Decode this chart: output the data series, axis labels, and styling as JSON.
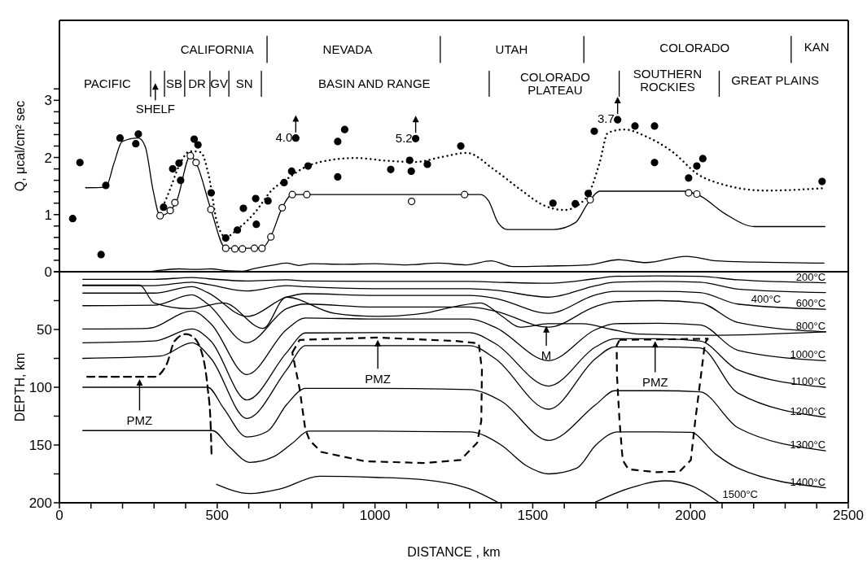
{
  "chart_data": [
    {
      "type": "line",
      "ylabel": "Q, μcal/cm² sec",
      "xlim": [
        0,
        2500
      ],
      "ylim": [
        0,
        4.4
      ],
      "tick_labels": "y",
      "yticks": [
        0,
        {
          "value": 0.2,
          "label": null
        },
        {
          "value": 0.4,
          "label": null
        },
        {
          "value": 0.6,
          "label": null
        },
        {
          "value": 0.8,
          "label": null
        },
        1,
        {
          "value": 1.2,
          "label": null
        },
        {
          "value": 1.4,
          "label": null
        },
        {
          "value": 1.6,
          "label": null
        },
        {
          "value": 1.8,
          "label": null
        },
        2,
        {
          "value": 2.2,
          "label": null
        },
        {
          "value": 2.4,
          "label": null
        },
        {
          "value": 2.6,
          "label": null
        },
        {
          "value": 2.8,
          "label": null
        },
        3,
        {
          "value": 3.2,
          "label": null
        }
      ],
      "annotations": [
        "SHELF",
        "CALIFORNIA",
        "NEVADA",
        "UTAH",
        "COLORADO",
        "KAN",
        "PACIFIC",
        "SB",
        "DR",
        "GV",
        "SN",
        "BASIN AND RANGE",
        "COLORADO\nPLATEAU",
        "SOUTHERN\nROCKIES",
        "GREAT PLAINS",
        "4.0",
        "5.2",
        "3.7"
      ],
      "series": [
        {
          "type": "line",
          "color": "#000000",
          "line_style": "solid",
          "x": [
            658,
            658,
            null,
            1207,
            1207,
            null,
            1662,
            1662,
            null,
            2319,
            2319
          ],
          "values": [
            3.66,
            4.12,
            null,
            3.66,
            4.12,
            null,
            3.66,
            4.12,
            null,
            3.66,
            4.12
          ]
        },
        {
          "type": "line",
          "color": "#000000",
          "line_style": "solid",
          "x": [
            289,
            289,
            null,
            333,
            333,
            null,
            397,
            397,
            null,
            477,
            477,
            null,
            537,
            537,
            null,
            640,
            640,
            null,
            1362,
            1362,
            null,
            1774,
            1774,
            null,
            2091,
            2091
          ],
          "values": [
            3.07,
            3.51,
            null,
            3.07,
            3.51,
            null,
            3.07,
            3.51,
            null,
            3.07,
            3.51,
            null,
            3.07,
            3.51,
            null,
            3.07,
            3.51,
            null,
            3.07,
            3.51,
            null,
            3.07,
            3.51,
            null,
            3.07,
            3.51
          ]
        },
        {
          "type": "line",
          "color": "#000000",
          "line_style": "solid",
          "x": [
            282,
            330,
            380,
            430,
            480,
            530,
            580,
            620,
            680,
            720,
            760,
            800,
            900,
            1000,
            1100,
            1200,
            1290,
            1368,
            1437,
            1550,
            1678,
            1772,
            1858,
            1987,
            2082,
            2200,
            2423
          ],
          "values": [
            0,
            0.03,
            0.05,
            0.04,
            0.05,
            0.02,
            0.01,
            0.06,
            0.12,
            0.15,
            0.11,
            0.14,
            0.13,
            0.14,
            0.12,
            0.15,
            0.12,
            0.19,
            0.09,
            0.1,
            0.12,
            0.21,
            0.16,
            0.27,
            0.19,
            0.17,
            0.15
          ]
        },
        {
          "type": "line",
          "color": "#000000",
          "line_style": "solid",
          "x": [
            83,
            147,
            173,
            199,
            250,
            272,
            297,
            319,
            351,
            371,
            415,
            435,
            480,
            527,
            642,
            670,
            706,
            738,
            1334,
            1360,
            1390,
            1420,
            1566,
            1635,
            1674,
            1712,
            1979,
            2030,
            2108,
            2203,
            2426
          ],
          "values": [
            1.47,
            1.48,
            1.9,
            2.28,
            2.34,
            2.19,
            1.42,
            0.98,
            1.07,
            1.23,
            2.03,
            1.88,
            1.09,
            0.41,
            0.41,
            0.62,
            1.12,
            1.35,
            1.35,
            1.24,
            0.86,
            0.74,
            0.74,
            0.86,
            1.19,
            1.41,
            1.41,
            1.33,
            1.02,
            0.79,
            0.79
          ]
        },
        {
          "type": "line",
          "color": "#000000",
          "line_style": "dotted",
          "x": [
            328,
            349,
            379,
            414,
            448,
            474,
            500,
            527,
            568,
            620,
            672,
            723,
            775,
            826,
            938,
            1042,
            1127,
            1213,
            1291,
            1377,
            1463,
            1532,
            1600,
            1669,
            1712,
            1738,
            1790,
            1858,
            1945,
            2022,
            2108,
            2237,
            2417
          ],
          "values": [
            1.14,
            1.42,
            1.85,
            2.11,
            2.09,
            1.66,
            0.85,
            0.61,
            0.76,
            1.04,
            1.42,
            1.63,
            1.82,
            1.92,
            1.99,
            1.94,
            1.92,
            2.01,
            2.08,
            1.79,
            1.43,
            1.17,
            1.08,
            1.29,
            1.91,
            2.43,
            2.49,
            2.37,
            2.09,
            1.71,
            1.52,
            1.42,
            1.46
          ]
        },
        {
          "type": "scatter",
          "color": "#ffffff",
          "marker": "circle",
          "x": [
            319,
            351,
            366,
            415,
            433,
            480,
            527,
            556,
            580,
            618,
            642,
            670,
            706,
            738,
            784,
            1116,
            1284,
            1682,
            1994,
            2020
          ],
          "values": [
            0.98,
            1.07,
            1.21,
            2.03,
            1.91,
            1.09,
            0.41,
            0.4,
            0.4,
            0.41,
            0.41,
            0.61,
            1.12,
            1.35,
            1.35,
            1.23,
            1.35,
            1.26,
            1.38,
            1.36
          ]
        },
        {
          "type": "scatter",
          "color": "#000000",
          "marker": "circle",
          "x": [
            65,
            42,
            132,
            147,
            192,
            242,
            250,
            330,
            359,
            379,
            384,
            427,
            439,
            481,
            527,
            564,
            583,
            622,
            624,
            661,
            712,
            736,
            749,
            788,
            882,
            904,
            882,
            1050,
            1110,
            1115,
            1129,
            1166,
            1272,
            1564,
            1635,
            1676,
            1695,
            1769,
            1824,
            1886,
            1886,
            1994,
            2020,
            2039,
            2417
          ],
          "values": [
            1.91,
            0.93,
            0.3,
            1.51,
            2.34,
            2.24,
            2.41,
            1.13,
            1.8,
            1.9,
            1.6,
            2.32,
            2.22,
            1.38,
            0.59,
            0.73,
            1.11,
            1.28,
            0.83,
            1.24,
            1.56,
            1.76,
            2.34,
            1.85,
            2.28,
            2.49,
            1.66,
            1.79,
            1.95,
            1.76,
            2.33,
            1.88,
            2.2,
            1.2,
            1.19,
            1.37,
            2.46,
            2.66,
            2.55,
            2.55,
            1.91,
            1.64,
            1.85,
            1.98,
            1.58
          ]
        }
      ]
    },
    {
      "type": "line",
      "xlabel": "DISTANCE , km",
      "ylabel": "DEPTH, km",
      "xlim": [
        0,
        2500
      ],
      "ylim": [
        200,
        0
      ],
      "xticks": [
        0,
        {
          "value": 100,
          "label": null
        },
        {
          "value": 200,
          "label": null
        },
        {
          "value": 300,
          "label": null
        },
        {
          "value": 400,
          "label": null
        },
        500,
        {
          "value": 600,
          "label": null
        },
        {
          "value": 700,
          "label": null
        },
        {
          "value": 800,
          "label": null
        },
        {
          "value": 900,
          "label": null
        },
        1000,
        {
          "value": 1100,
          "label": null
        },
        {
          "value": 1200,
          "label": null
        },
        {
          "value": 1300,
          "label": null
        },
        {
          "value": 1400,
          "label": null
        },
        1500,
        {
          "value": 1600,
          "label": null
        },
        {
          "value": 1700,
          "label": null
        },
        {
          "value": 1800,
          "label": null
        },
        {
          "value": 1900,
          "label": null
        },
        2000,
        {
          "value": 2100,
          "label": null
        },
        {
          "value": 2200,
          "label": null
        },
        {
          "value": 2300,
          "label": null
        },
        {
          "value": 2400,
          "label": null
        },
        2500
      ],
      "yticks": [
        {
          "value": 0,
          "label": null
        },
        {
          "value": 25,
          "label": null
        },
        50,
        {
          "value": 75,
          "label": null
        },
        100,
        {
          "value": 125,
          "label": null
        },
        150,
        {
          "value": 175,
          "label": null
        },
        200
      ],
      "annotations": [
        "PMZ",
        "PMZ",
        "M",
        "PMZ"
      ],
      "series": [
        {
          "name": "200°C",
          "color": "#000000",
          "line_style": "solid",
          "x": [
            74,
            300,
            420,
            470,
            594,
            720,
            780,
            1000,
            1300,
            1380,
            1550,
            1700,
            1760,
            1900,
            2030,
            2150,
            2428
          ],
          "values": [
            6.6,
            6.6,
            5,
            6,
            8,
            7,
            8,
            8.4,
            8.4,
            9,
            10,
            6,
            4,
            3.6,
            4,
            7,
            9.6
          ]
        },
        {
          "name": "400°C",
          "color": "#000000",
          "line_style": "solid",
          "x": [
            74,
            300,
            420,
            470,
            594,
            720,
            780,
            1000,
            1300,
            1380,
            1550,
            1700,
            1760,
            1900,
            2030,
            2150,
            2428
          ],
          "values": [
            12,
            12,
            9,
            11,
            16.7,
            12,
            13,
            14.7,
            14.7,
            16,
            22,
            12,
            9,
            8.4,
            9,
            15,
            18
          ]
        },
        {
          "name": "600°C",
          "color": "#000000",
          "line_style": "solid",
          "x": [
            74,
            300,
            420,
            470,
            594,
            720,
            780,
            1000,
            1300,
            1380,
            1550,
            1700,
            1760,
            1900,
            2030,
            2150,
            2428
          ],
          "values": [
            18.5,
            18.5,
            13,
            18,
            38.7,
            22,
            19,
            20.5,
            20.5,
            23,
            36,
            20,
            17,
            17,
            18,
            28,
            32.5
          ]
        },
        {
          "name": "800°C",
          "color": "#000000",
          "line_style": "solid",
          "x": [
            74,
            300,
            420,
            470,
            594,
            720,
            780,
            1000,
            1300,
            1380,
            1550,
            1700,
            1760,
            1900,
            2030,
            2150,
            2428
          ],
          "values": [
            29.4,
            29,
            20,
            28,
            61.5,
            32,
            28,
            30.6,
            30.6,
            34,
            48,
            30,
            26,
            25,
            27,
            44,
            52
          ]
        },
        {
          "name": "1000°C",
          "color": "#000000",
          "line_style": "solid",
          "x": [
            74,
            280,
            420,
            480,
            594,
            720,
            780,
            1000,
            1300,
            1380,
            1550,
            1700,
            1760,
            1900,
            2030,
            2150,
            2428
          ],
          "values": [
            49.6,
            49,
            34,
            45,
            89,
            50,
            40,
            41,
            41,
            48,
            77,
            50,
            45,
            44.6,
            46,
            68,
            77
          ]
        },
        {
          "name": "1100°C",
          "color": "#000000",
          "line_style": "solid",
          "x": [
            74,
            300,
            420,
            480,
            594,
            720,
            780,
            1000,
            1300,
            1380,
            1550,
            1700,
            1760,
            1900,
            2030,
            2150,
            2428
          ],
          "values": [
            61.5,
            60,
            49.6,
            60,
            111,
            70,
            53,
            52.7,
            52.7,
            62,
            99,
            65,
            58,
            58,
            60,
            85,
            100
          ]
        },
        {
          "name": "1200°C",
          "color": "#000000",
          "line_style": "solid",
          "x": [
            74,
            320,
            420,
            480,
            594,
            720,
            780,
            1000,
            1300,
            1380,
            1550,
            1700,
            1760,
            1900,
            2030,
            2150,
            2428
          ],
          "values": [
            75,
            73,
            61.5,
            75,
            127,
            85,
            64,
            64,
            64,
            75,
            119,
            75,
            65,
            65,
            66,
            105,
            126
          ]
        },
        {
          "name": "1300°C",
          "color": "#000000",
          "line_style": "solid",
          "x": [
            74,
            470,
            520,
            594,
            660,
            720,
            780,
            1000,
            1300,
            1400,
            1550,
            1700,
            1760,
            1900,
            2030,
            2150,
            2428
          ],
          "values": [
            100,
            100,
            118,
            143,
            138,
            115,
            101,
            101,
            102,
            112,
            146,
            115,
            103,
            103,
            104,
            135,
            155
          ]
        },
        {
          "name": "1400°C",
          "color": "#000000",
          "line_style": "solid",
          "x": [
            74,
            485,
            540,
            604,
            680,
            740,
            790,
            1000,
            1300,
            1400,
            1480,
            1550,
            1640,
            1700,
            1770,
            1900,
            2000,
            2080,
            2150,
            2428
          ],
          "values": [
            137.5,
            137.5,
            152,
            165,
            160,
            148,
            138,
            138,
            138.6,
            150,
            168,
            175,
            170,
            150,
            138.6,
            138.6,
            139,
            158,
            170,
            187
          ]
        },
        {
          "name": "1500°C",
          "color": "#000000",
          "line_style": "solid",
          "x": [
            498,
            604,
            700,
            825,
            1000,
            1153,
            1300,
            1392,
            null,
            1694,
            1800,
            1920,
            2000,
            2091
          ],
          "values": [
            184,
            192,
            188,
            177,
            178,
            180,
            188,
            200,
            null,
            200,
            188,
            181,
            185,
            200
          ]
        },
        {
          "color": "#000000",
          "line_style": "solid",
          "x": [
            74,
            254,
            300,
            411,
            521,
            645,
            719,
            871,
            1010,
            1153,
            1257,
            1334,
            1400,
            1460,
            1550,
            1658,
            1750,
            1838,
            2055,
            2429
          ],
          "values": [
            11.6,
            11.6,
            27,
            32,
            27,
            49,
            22,
            36,
            38.7,
            36,
            30,
            27,
            38,
            48,
            45,
            45,
            50,
            54,
            55,
            52
          ]
        },
        {
          "color": "#000000",
          "line_style": "dashed",
          "x": [
            88,
            300,
            340,
            365,
            401,
            424,
            456,
            470,
            479,
            482
          ],
          "values": [
            91,
            91,
            80,
            60,
            54,
            56.5,
            75,
            101,
            131,
            158
          ]
        }
      ]
    }
  ]
}
